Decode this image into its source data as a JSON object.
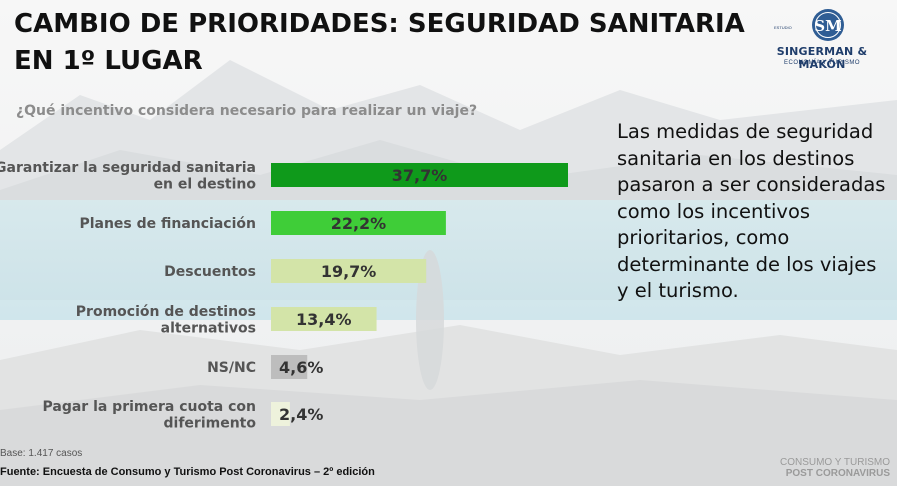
{
  "title": {
    "line1": "CAMBIO DE PRIORIDADES: SEGURIDAD SANITARIA",
    "line2": "EN 1º LUGAR"
  },
  "logo": {
    "estudio": "ESTUDIO",
    "monogram": "SM",
    "brand": "SINGERMAN & MAKÓN",
    "tagline": "ECONOMÍA Y TURISMO"
  },
  "question": "¿Qué incentivo considera necesario para realizar un viaje?",
  "chart_data": {
    "type": "bar",
    "orientation": "horizontal",
    "title": "",
    "categories": [
      [
        "Garantizar la seguridad sanitaria",
        "en el destino"
      ],
      [
        "Planes de financiación"
      ],
      [
        "Descuentos"
      ],
      [
        "Promoción de destinos",
        "alternativos"
      ],
      [
        "NS/NC"
      ],
      [
        "Pagar la primera cuota con",
        "diferimento"
      ]
    ],
    "values": [
      37.7,
      22.2,
      19.7,
      13.4,
      4.6,
      2.4
    ],
    "value_labels": [
      "37,7%",
      "22,2%",
      "19,7%",
      "13,4%",
      "4,6%",
      "2,4%"
    ],
    "colors": [
      "#0f9a1b",
      "#3fcd38",
      "#d3e4a8",
      "#d3e4a8",
      "#bdbdbd",
      "#eef2dc"
    ],
    "xlim": [
      0,
      40
    ],
    "grid": false,
    "legend": "none"
  },
  "right_text": "Las medidas de seguridad sanitaria en los destinos pasaron a ser consideradas como los incentivos prioritarios, como determinante de los viajes y el turismo.",
  "base": "Base: 1.417 casos",
  "source": "Fuente: Encuesta de Consumo y Turismo Post Coronavirus – 2º edición",
  "footer": {
    "line1": "CONSUMO Y TURISMO",
    "line2": "POST CORONAVIRUS"
  }
}
